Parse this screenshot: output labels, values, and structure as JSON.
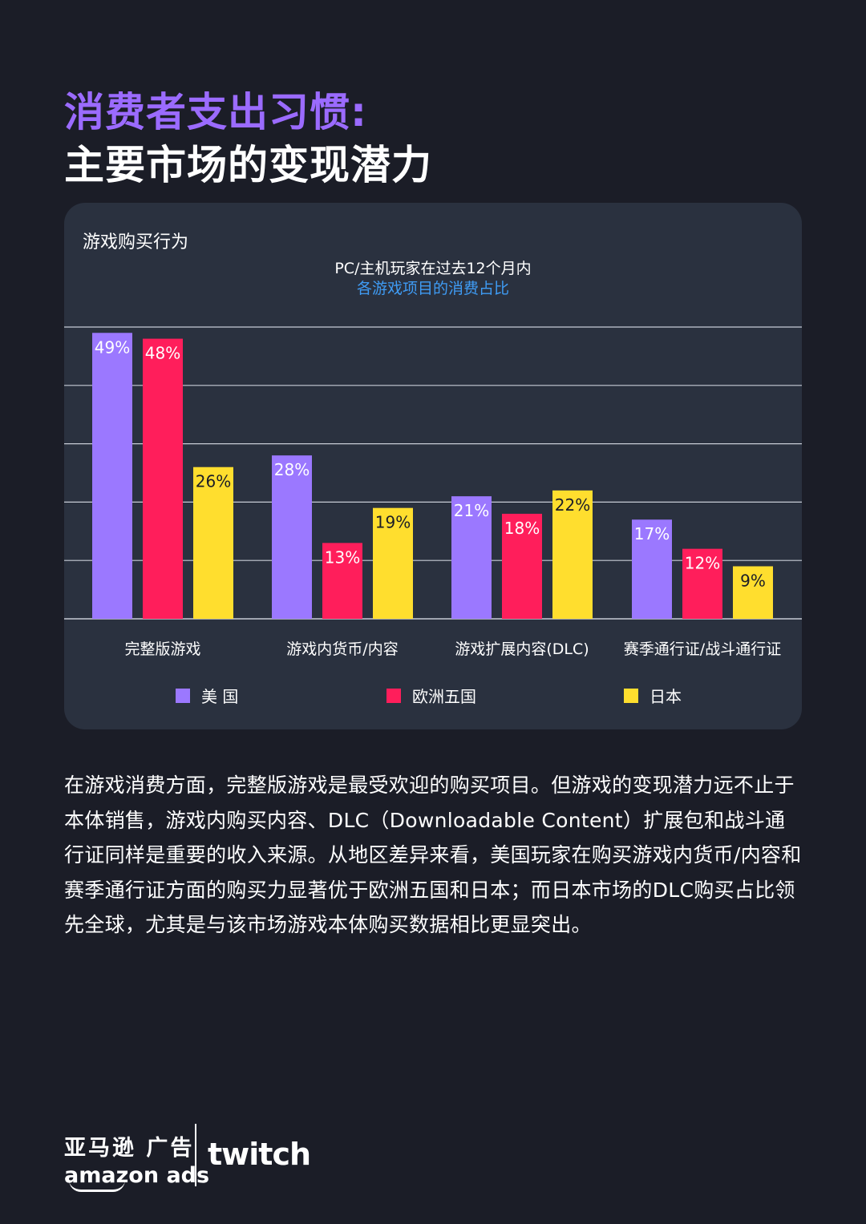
{
  "header": {
    "title_line1": "消费者支出习惯:",
    "title_line2": "主要市场的变现潜力"
  },
  "card": {
    "label": "游戏购买行为",
    "subtitle_line1": "PC/主机玩家在过去12个月内",
    "subtitle_line2": "各游戏项目的消费占比"
  },
  "chart_data": {
    "type": "bar",
    "title": "PC/主机玩家在过去12个月内 各游戏项目的消费占比",
    "categories": [
      "完整版游戏",
      "游戏内货币/内容",
      "游戏扩展内容(DLC)",
      "赛季通行证/战斗通行证"
    ],
    "series": [
      {
        "name": "美 国",
        "color": "#9b78ff",
        "values": [
          49,
          28,
          21,
          17
        ]
      },
      {
        "name": "欧洲五国",
        "color": "#ff1e5b",
        "values": [
          48,
          13,
          18,
          12
        ]
      },
      {
        "name": "日本",
        "color": "#ffde2e",
        "values": [
          26,
          19,
          22,
          9
        ]
      }
    ],
    "value_suffix": "%",
    "ylim": [
      0,
      50
    ],
    "grid": true,
    "legend_position": "bottom"
  },
  "body": {
    "paragraph": "在游戏消费方面，完整版游戏是最受欢迎的购买项目。但游戏的变现潜力远不止于本体销售，游戏内购买内容、DLC（Downloadable Content）扩展包和战斗通行证同样是重要的收入来源。从地区差异来看，美国玩家在购买游戏内货币/内容和赛季通行证方面的购买力显著优于欧洲五国和日本；而日本市场的DLC购买占比领先全球，尤其是与该市场游戏本体购买数据相比更显突出。"
  },
  "footer": {
    "amazon_cn": "亚马逊 广告",
    "amazon_en": "amazon ads",
    "twitch": "twitch"
  }
}
